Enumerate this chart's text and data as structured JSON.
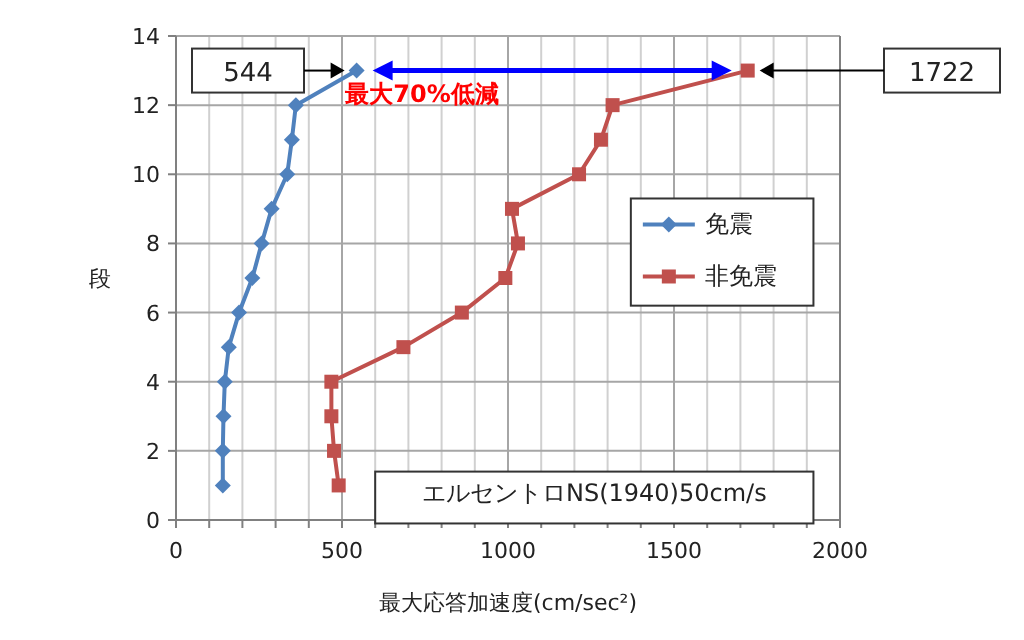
{
  "chart_data": {
    "type": "line",
    "xlabel": "最大応答加速度(cm/sec²)",
    "ylabel": "段",
    "xlim": [
      0,
      2000
    ],
    "ylim": [
      0,
      14
    ],
    "xticks": [
      0,
      {
        "value": 100,
        "label": null
      },
      {
        "value": 200,
        "label": null
      },
      {
        "value": 300,
        "label": null
      },
      {
        "value": 400,
        "label": null
      },
      500,
      {
        "value": 600,
        "label": null
      },
      {
        "value": 700,
        "label": null
      },
      {
        "value": 800,
        "label": null
      },
      {
        "value": 900,
        "label": null
      },
      1000,
      {
        "value": 1100,
        "label": null
      },
      {
        "value": 1200,
        "label": null
      },
      {
        "value": 1300,
        "label": null
      },
      {
        "value": 1400,
        "label": null
      },
      1500,
      {
        "value": 1600,
        "label": null
      },
      {
        "value": 1700,
        "label": null
      },
      {
        "value": 1800,
        "label": null
      },
      {
        "value": 1900,
        "label": null
      },
      2000
    ],
    "yticks": [
      0,
      2,
      4,
      6,
      8,
      10,
      12,
      14
    ],
    "grid": true,
    "legend": "right",
    "series": [
      {
        "name": "免震",
        "color": "#4f81bd",
        "marker": "diamond",
        "x": [
          141,
          141,
          143,
          147,
          159,
          190,
          230,
          258,
          288,
          335,
          349,
          361,
          544
        ],
        "values": [
          1,
          2,
          3,
          4,
          5,
          6,
          7,
          8,
          9,
          10,
          11,
          12,
          13
        ]
      },
      {
        "name": "非免震",
        "color": "#c0504d",
        "marker": "square",
        "x": [
          490,
          476,
          468,
          468,
          685,
          861,
          992,
          1030,
          1012,
          1214,
          1280,
          1315,
          1722
        ],
        "values": [
          1,
          2,
          3,
          4,
          5,
          6,
          7,
          8,
          9,
          10,
          11,
          12,
          13
        ]
      }
    ],
    "annotations": [
      "544",
      "1722",
      "最大70%低減",
      "エルセントロNS(1940)50cm/s"
    ]
  }
}
